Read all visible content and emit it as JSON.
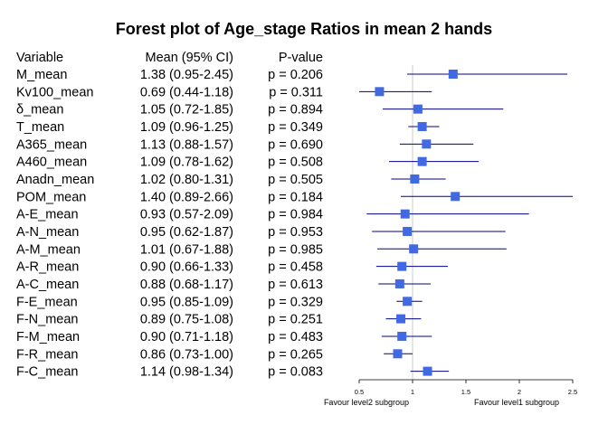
{
  "chart_data": {
    "type": "forest",
    "title": "Forest plot of Age_stage Ratios in mean 2 hands",
    "columns": {
      "variable": "Variable",
      "estimate": "Mean (95% CI)",
      "pvalue": "P-value"
    },
    "rows": [
      {
        "label": "M_mean",
        "mean": 1.38,
        "lower": 0.95,
        "upper": 2.45,
        "ci_text": "1.38 (0.95-2.45)",
        "p_text": "p = 0.206"
      },
      {
        "label": "Kv100_mean",
        "mean": 0.69,
        "lower": 0.44,
        "upper": 1.18,
        "ci_text": "0.69 (0.44-1.18)",
        "p_text": "p = 0.311"
      },
      {
        "label": "δ_mean",
        "mean": 1.05,
        "lower": 0.72,
        "upper": 1.85,
        "ci_text": "1.05 (0.72-1.85)",
        "p_text": "p = 0.894"
      },
      {
        "label": "T_mean",
        "mean": 1.09,
        "lower": 0.96,
        "upper": 1.25,
        "ci_text": "1.09 (0.96-1.25)",
        "p_text": "p = 0.349"
      },
      {
        "label": "A365_mean",
        "mean": 1.13,
        "lower": 0.88,
        "upper": 1.57,
        "ci_text": "1.13 (0.88-1.57)",
        "p_text": "p = 0.690"
      },
      {
        "label": "A460_mean",
        "mean": 1.09,
        "lower": 0.78,
        "upper": 1.62,
        "ci_text": "1.09 (0.78-1.62)",
        "p_text": "p = 0.508"
      },
      {
        "label": "Anadn_mean",
        "mean": 1.02,
        "lower": 0.8,
        "upper": 1.31,
        "ci_text": "1.02 (0.80-1.31)",
        "p_text": "p = 0.505"
      },
      {
        "label": "POM_mean",
        "mean": 1.4,
        "lower": 0.89,
        "upper": 2.66,
        "ci_text": "1.40 (0.89-2.66)",
        "p_text": "p = 0.184"
      },
      {
        "label": "A-E_mean",
        "mean": 0.93,
        "lower": 0.57,
        "upper": 2.09,
        "ci_text": "0.93 (0.57-2.09)",
        "p_text": "p = 0.984"
      },
      {
        "label": "A-N_mean",
        "mean": 0.95,
        "lower": 0.62,
        "upper": 1.87,
        "ci_text": "0.95 (0.62-1.87)",
        "p_text": "p = 0.953"
      },
      {
        "label": "A-M_mean",
        "mean": 1.01,
        "lower": 0.67,
        "upper": 1.88,
        "ci_text": "1.01 (0.67-1.88)",
        "p_text": "p = 0.985"
      },
      {
        "label": "A-R_mean",
        "mean": 0.9,
        "lower": 0.66,
        "upper": 1.33,
        "ci_text": "0.90 (0.66-1.33)",
        "p_text": "p = 0.458"
      },
      {
        "label": "A-C_mean",
        "mean": 0.88,
        "lower": 0.68,
        "upper": 1.17,
        "ci_text": "0.88 (0.68-1.17)",
        "p_text": "p = 0.613"
      },
      {
        "label": "F-E_mean",
        "mean": 0.95,
        "lower": 0.85,
        "upper": 1.09,
        "ci_text": "0.95 (0.85-1.09)",
        "p_text": "p = 0.329"
      },
      {
        "label": "F-N_mean",
        "mean": 0.89,
        "lower": 0.75,
        "upper": 1.08,
        "ci_text": "0.89 (0.75-1.08)",
        "p_text": "p = 0.251"
      },
      {
        "label": "F-M_mean",
        "mean": 0.9,
        "lower": 0.71,
        "upper": 1.18,
        "ci_text": "0.90 (0.71-1.18)",
        "p_text": "p = 0.483"
      },
      {
        "label": "F-R_mean",
        "mean": 0.86,
        "lower": 0.73,
        "upper": 1.0,
        "ci_text": "0.86 (0.73-1.00)",
        "p_text": "p = 0.265"
      },
      {
        "label": "F-C_mean",
        "mean": 1.14,
        "lower": 0.98,
        "upper": 1.34,
        "ci_text": "1.14 (0.98-1.34)",
        "p_text": "p = 0.083"
      }
    ],
    "xlim": [
      0.5,
      2.5
    ],
    "x_ticks": [
      0.5,
      1,
      1.5,
      2,
      2.5
    ],
    "x_tick_labels": [
      "0.5",
      "1",
      "1.5",
      "2",
      "2.5"
    ],
    "reference_line": 1,
    "favour_left": "Favour level2 subgroup",
    "favour_right": "Favour level1 subgroup",
    "colors": {
      "marker": "#4169e1",
      "ci_line": "#00008b",
      "ref_line": "#cccccc",
      "axis": "#000000"
    }
  }
}
